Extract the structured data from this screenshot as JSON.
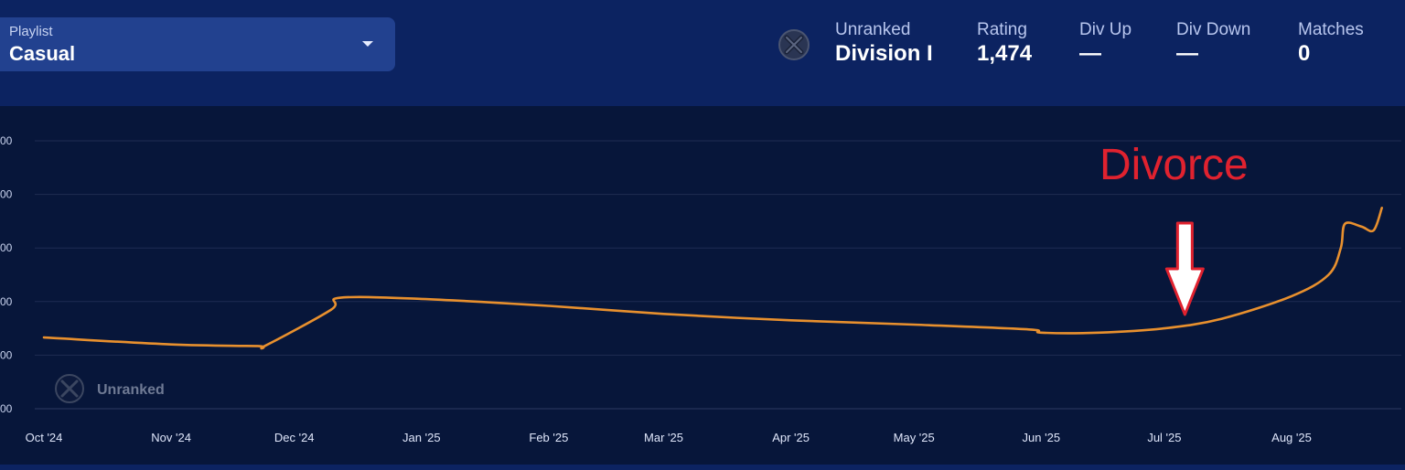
{
  "header": {
    "playlist_label": "Playlist",
    "playlist_value": "Casual",
    "rank_icon": "unranked-x-icon",
    "stats": [
      {
        "key": "Unranked",
        "value": "Division I"
      },
      {
        "key": "Rating",
        "value": "1,474"
      },
      {
        "key": "Div Up",
        "value": "—"
      },
      {
        "key": "Div Down",
        "value": "—"
      },
      {
        "key": "Matches",
        "value": "0"
      }
    ]
  },
  "legend_badge": {
    "icon": "unranked-x-icon",
    "label": "Unranked"
  },
  "annotation": {
    "text": "Divorce",
    "color": "#e0222f",
    "arrow_date": "2025-07-06"
  },
  "chart_data": {
    "type": "line",
    "title": "",
    "xlabel": "",
    "ylabel": "",
    "x_tick_labels": [
      "Oct '24",
      "Nov '24",
      "Dec '24",
      "Jan '25",
      "Feb '25",
      "Mar '25",
      "Apr '25",
      "May '25",
      "Jun '25",
      "Jul '25",
      "Aug '25"
    ],
    "x_tick_dates": [
      "2024-10-01",
      "2024-11-01",
      "2024-12-01",
      "2025-01-01",
      "2025-02-01",
      "2025-03-01",
      "2025-04-01",
      "2025-05-01",
      "2025-06-01",
      "2025-07-01",
      "2025-08-01"
    ],
    "y_tick_labels": [
      "00",
      "00",
      "00",
      "00",
      "00",
      "00"
    ],
    "ylim": [
      0,
      500
    ],
    "y_ticks": [
      0,
      100,
      200,
      300,
      400,
      500
    ],
    "grid": true,
    "line_color": "#e8902e",
    "series": [
      {
        "points": [
          {
            "date": "2024-10-01",
            "y": 133
          },
          {
            "date": "2024-11-01",
            "y": 120
          },
          {
            "date": "2024-11-22",
            "y": 117
          },
          {
            "date": "2024-11-24",
            "y": 118
          },
          {
            "date": "2024-12-10",
            "y": 185
          },
          {
            "date": "2024-12-12",
            "y": 207
          },
          {
            "date": "2025-01-01",
            "y": 205
          },
          {
            "date": "2025-02-01",
            "y": 192
          },
          {
            "date": "2025-03-01",
            "y": 177
          },
          {
            "date": "2025-04-01",
            "y": 165
          },
          {
            "date": "2025-05-01",
            "y": 157
          },
          {
            "date": "2025-05-29",
            "y": 148
          },
          {
            "date": "2025-06-01",
            "y": 142
          },
          {
            "date": "2025-06-15",
            "y": 142
          },
          {
            "date": "2025-07-01",
            "y": 150
          },
          {
            "date": "2025-07-15",
            "y": 168
          },
          {
            "date": "2025-08-01",
            "y": 210
          },
          {
            "date": "2025-08-10",
            "y": 250
          },
          {
            "date": "2025-08-13",
            "y": 300
          },
          {
            "date": "2025-08-14",
            "y": 345
          },
          {
            "date": "2025-08-18",
            "y": 340
          },
          {
            "date": "2025-08-21",
            "y": 333
          },
          {
            "date": "2025-08-23",
            "y": 375
          }
        ]
      }
    ]
  }
}
